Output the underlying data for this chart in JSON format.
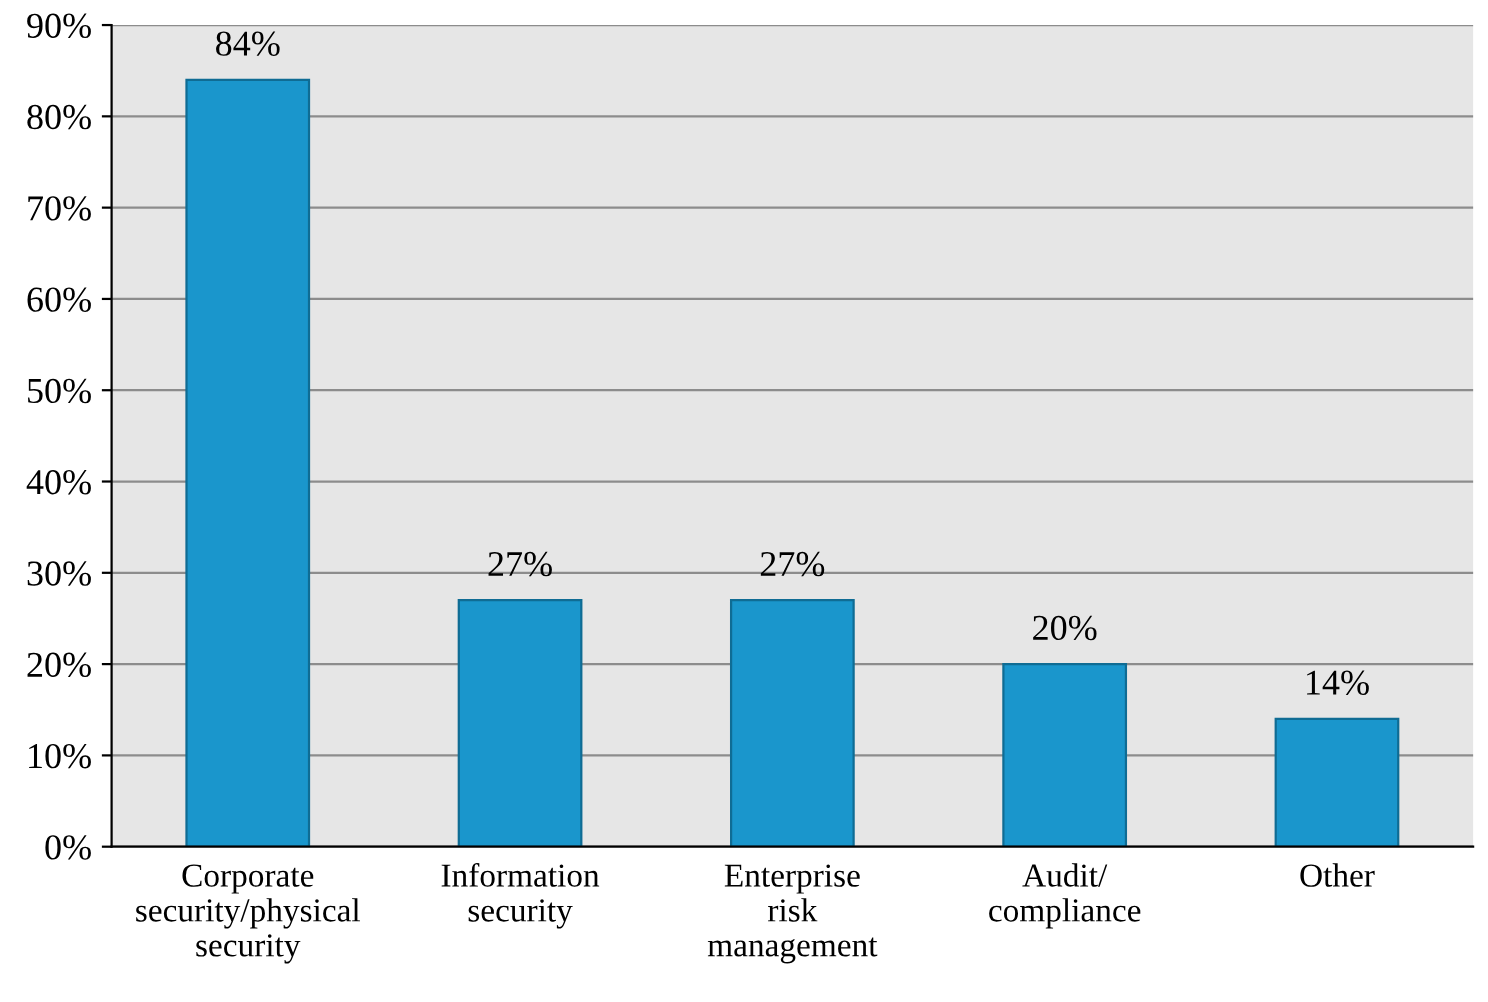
{
  "chart_data": {
    "type": "bar",
    "categories": [
      "Corporate\nsecurity/physical\nsecurity",
      "Information\nsecurity",
      "Enterprise\nrisk\nmanagement",
      "Audit/\ncompliance",
      "Other"
    ],
    "values": [
      84,
      27,
      27,
      20,
      14
    ],
    "value_labels": [
      "84%",
      "27%",
      "27%",
      "20%",
      "14%"
    ],
    "color": "#1a96cc",
    "ylim": [
      0,
      90
    ],
    "yticks": [
      {
        "value": 0,
        "label": "0%"
      },
      {
        "value": 10,
        "label": "10%"
      },
      {
        "value": 20,
        "label": "20%"
      },
      {
        "value": 30,
        "label": "30%"
      },
      {
        "value": 40,
        "label": "40%"
      },
      {
        "value": 50,
        "label": "50%"
      },
      {
        "value": 60,
        "label": "60%"
      },
      {
        "value": 70,
        "label": "70%"
      },
      {
        "value": 80,
        "label": "80%"
      },
      {
        "value": 90,
        "label": "90%"
      }
    ],
    "grid": "y",
    "legend": false
  }
}
